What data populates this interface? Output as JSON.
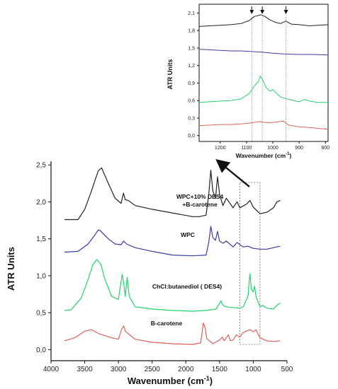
{
  "chart_data": [
    {
      "type": "line",
      "xlabel": "Wavenumber (cm",
      "xlabel_sup": "-1",
      "xlabel_tail": ")",
      "ylabel": "ATR Units",
      "xlim": [
        4000,
        500
      ],
      "ylim": [
        -0.15,
        2.55
      ],
      "x_ticks": [
        4000,
        3500,
        3000,
        2500,
        2000,
        1500,
        1000,
        500
      ],
      "x_tick_labels": [
        "4000",
        "3500",
        "3000",
        "2500",
        "2000",
        "1500",
        "1000",
        "500"
      ],
      "y_ticks": [
        0.0,
        0.5,
        1.0,
        1.5,
        2.0,
        2.5
      ],
      "y_tick_labels": [
        "0,0",
        "0,5",
        "1,0",
        "1,5",
        "2,0",
        "2,5"
      ],
      "grid": false,
      "annotation_box_x": [
        1200,
        900
      ],
      "series": [
        {
          "name": "WPC+10% DES4 +B-carotene",
          "label_lines": [
            "WPC+10% DES4",
            "+B-carotene"
          ],
          "color": "#222222",
          "points": [
            [
              3800,
              1.76
            ],
            [
              3600,
              1.76
            ],
            [
              3500,
              1.9
            ],
            [
              3400,
              2.15
            ],
            [
              3300,
              2.42
            ],
            [
              3250,
              2.46
            ],
            [
              3150,
              2.25
            ],
            [
              3050,
              2.05
            ],
            [
              2960,
              1.98
            ],
            [
              2925,
              2.12
            ],
            [
              2900,
              2.03
            ],
            [
              2855,
              2.02
            ],
            [
              2750,
              1.95
            ],
            [
              2500,
              1.9
            ],
            [
              2200,
              1.85
            ],
            [
              1900,
              1.8
            ],
            [
              1800,
              1.8
            ],
            [
              1700,
              1.82
            ],
            [
              1660,
              2.1
            ],
            [
              1630,
              2.43
            ],
            [
              1600,
              2.15
            ],
            [
              1560,
              2.05
            ],
            [
              1530,
              2.34
            ],
            [
              1500,
              2.1
            ],
            [
              1450,
              1.95
            ],
            [
              1400,
              2.05
            ],
            [
              1300,
              1.92
            ],
            [
              1240,
              2.0
            ],
            [
              1200,
              1.92
            ],
            [
              1100,
              1.97
            ],
            [
              1050,
              2.02
            ],
            [
              1000,
              1.93
            ],
            [
              900,
              1.84
            ],
            [
              800,
              1.86
            ],
            [
              700,
              1.92
            ],
            [
              650,
              2.0
            ],
            [
              600,
              2.02
            ]
          ]
        },
        {
          "name": "WPC",
          "label_lines": [
            "WPC"
          ],
          "color": "#3b3ba6",
          "points": [
            [
              3800,
              1.32
            ],
            [
              3600,
              1.33
            ],
            [
              3450,
              1.43
            ],
            [
              3350,
              1.55
            ],
            [
              3300,
              1.62
            ],
            [
              3270,
              1.61
            ],
            [
              3150,
              1.5
            ],
            [
              3050,
              1.43
            ],
            [
              2960,
              1.42
            ],
            [
              2925,
              1.47
            ],
            [
              2880,
              1.43
            ],
            [
              2750,
              1.38
            ],
            [
              2500,
              1.33
            ],
            [
              2200,
              1.28
            ],
            [
              1900,
              1.27
            ],
            [
              1700,
              1.28
            ],
            [
              1660,
              1.45
            ],
            [
              1630,
              1.67
            ],
            [
              1600,
              1.52
            ],
            [
              1560,
              1.48
            ],
            [
              1530,
              1.6
            ],
            [
              1500,
              1.47
            ],
            [
              1450,
              1.44
            ],
            [
              1400,
              1.47
            ],
            [
              1300,
              1.39
            ],
            [
              1240,
              1.45
            ],
            [
              1150,
              1.39
            ],
            [
              1080,
              1.4
            ],
            [
              1000,
              1.37
            ],
            [
              900,
              1.36
            ],
            [
              800,
              1.36
            ],
            [
              700,
              1.38
            ],
            [
              600,
              1.4
            ]
          ]
        },
        {
          "name": "ChCl:butanediol ( DES4)",
          "label_lines": [
            "ChCl:butanediol ( DES4)"
          ],
          "color": "#22d46a",
          "points": [
            [
              3800,
              0.53
            ],
            [
              3700,
              0.54
            ],
            [
              3550,
              0.7
            ],
            [
              3450,
              0.95
            ],
            [
              3380,
              1.15
            ],
            [
              3320,
              1.22
            ],
            [
              3260,
              1.15
            ],
            [
              3200,
              0.95
            ],
            [
              3100,
              0.72
            ],
            [
              3000,
              0.68
            ],
            [
              2945,
              1.02
            ],
            [
              2920,
              0.88
            ],
            [
              2900,
              0.72
            ],
            [
              2870,
              0.98
            ],
            [
              2840,
              0.72
            ],
            [
              2750,
              0.58
            ],
            [
              2500,
              0.55
            ],
            [
              2200,
              0.53
            ],
            [
              1900,
              0.52
            ],
            [
              1700,
              0.53
            ],
            [
              1550,
              0.55
            ],
            [
              1480,
              0.66
            ],
            [
              1450,
              0.6
            ],
            [
              1400,
              0.58
            ],
            [
              1300,
              0.57
            ],
            [
              1200,
              0.56
            ],
            [
              1150,
              0.58
            ],
            [
              1080,
              0.72
            ],
            [
              1050,
              1.03
            ],
            [
              1030,
              0.82
            ],
            [
              1000,
              0.78
            ],
            [
              980,
              0.86
            ],
            [
              960,
              0.72
            ],
            [
              900,
              0.58
            ],
            [
              860,
              0.6
            ],
            [
              800,
              0.56
            ],
            [
              700,
              0.55
            ],
            [
              650,
              0.6
            ],
            [
              600,
              0.63
            ]
          ]
        },
        {
          "name": "B-carotene",
          "label_lines": [
            "B-carotene"
          ],
          "color": "#e0605a",
          "points": [
            [
              3800,
              0.12
            ],
            [
              3650,
              0.16
            ],
            [
              3500,
              0.25
            ],
            [
              3400,
              0.27
            ],
            [
              3300,
              0.22
            ],
            [
              3100,
              0.16
            ],
            [
              3000,
              0.14
            ],
            [
              2950,
              0.28
            ],
            [
              2920,
              0.32
            ],
            [
              2900,
              0.25
            ],
            [
              2860,
              0.22
            ],
            [
              2750,
              0.14
            ],
            [
              2500,
              0.1
            ],
            [
              2200,
              0.08
            ],
            [
              1900,
              0.07
            ],
            [
              1780,
              0.09
            ],
            [
              1740,
              0.36
            ],
            [
              1715,
              0.3
            ],
            [
              1690,
              0.15
            ],
            [
              1600,
              0.08
            ],
            [
              1560,
              0.1
            ],
            [
              1500,
              0.13
            ],
            [
              1460,
              0.17
            ],
            [
              1430,
              0.12
            ],
            [
              1370,
              0.2
            ],
            [
              1340,
              0.12
            ],
            [
              1300,
              0.13
            ],
            [
              1250,
              0.2
            ],
            [
              1200,
              0.17
            ],
            [
              1150,
              0.23
            ],
            [
              1100,
              0.25
            ],
            [
              1050,
              0.27
            ],
            [
              1000,
              0.24
            ],
            [
              960,
              0.27
            ],
            [
              900,
              0.16
            ],
            [
              800,
              0.12
            ],
            [
              700,
              0.11
            ],
            [
              600,
              0.12
            ]
          ]
        }
      ]
    },
    {
      "type": "line",
      "xlabel": "Wavenumber (cm",
      "xlabel_sup": "-1",
      "xlabel_tail": ")",
      "ylabel": "ATR Units",
      "xlim": [
        1280,
        790
      ],
      "ylim": [
        -0.1,
        2.25
      ],
      "x_ticks": [
        1200,
        1100,
        1000,
        900,
        800
      ],
      "x_tick_labels": [
        "1200",
        "1100",
        "1000",
        "900",
        "800"
      ],
      "y_ticks": [
        0.0,
        0.3,
        0.6,
        0.9,
        1.2,
        1.5,
        1.8,
        2.1
      ],
      "y_tick_labels": [
        "0,0",
        "0,3",
        "0,6",
        "0,9",
        "1,2",
        "1,5",
        "1,8",
        "2,1"
      ],
      "grid": false,
      "markers_x": [
        1080,
        1040,
        950
      ],
      "series": [
        {
          "color": "#222222",
          "points": [
            [
              1280,
              1.87
            ],
            [
              1240,
              1.88
            ],
            [
              1200,
              1.89
            ],
            [
              1160,
              1.9
            ],
            [
              1120,
              1.92
            ],
            [
              1090,
              1.97
            ],
            [
              1070,
              2.04
            ],
            [
              1045,
              2.07
            ],
            [
              1030,
              2.04
            ],
            [
              1010,
              1.98
            ],
            [
              990,
              1.94
            ],
            [
              970,
              1.92
            ],
            [
              950,
              1.96
            ],
            [
              930,
              1.91
            ],
            [
              900,
              1.9
            ],
            [
              860,
              1.88
            ],
            [
              830,
              1.89
            ],
            [
              790,
              1.9
            ]
          ]
        },
        {
          "color": "#3b3ba6",
          "points": [
            [
              1280,
              1.48
            ],
            [
              1240,
              1.47
            ],
            [
              1200,
              1.46
            ],
            [
              1160,
              1.45
            ],
            [
              1120,
              1.45
            ],
            [
              1080,
              1.44
            ],
            [
              1040,
              1.43
            ],
            [
              1000,
              1.41
            ],
            [
              960,
              1.4
            ],
            [
              900,
              1.39
            ],
            [
              850,
              1.39
            ],
            [
              790,
              1.38
            ]
          ]
        },
        {
          "color": "#22d46a",
          "points": [
            [
              1280,
              0.57
            ],
            [
              1240,
              0.58
            ],
            [
              1200,
              0.59
            ],
            [
              1160,
              0.6
            ],
            [
              1120,
              0.63
            ],
            [
              1090,
              0.72
            ],
            [
              1070,
              0.85
            ],
            [
              1055,
              0.93
            ],
            [
              1048,
              1.02
            ],
            [
              1038,
              0.95
            ],
            [
              1025,
              0.82
            ],
            [
              1010,
              0.76
            ],
            [
              1000,
              0.79
            ],
            [
              985,
              0.72
            ],
            [
              970,
              0.66
            ],
            [
              950,
              0.63
            ],
            [
              930,
              0.61
            ],
            [
              900,
              0.58
            ],
            [
              880,
              0.62
            ],
            [
              860,
              0.59
            ],
            [
              830,
              0.57
            ],
            [
              790,
              0.57
            ]
          ]
        },
        {
          "color": "#e0605a",
          "points": [
            [
              1280,
              0.17
            ],
            [
              1240,
              0.18
            ],
            [
              1200,
              0.19
            ],
            [
              1160,
              0.19
            ],
            [
              1120,
              0.2
            ],
            [
              1080,
              0.22
            ],
            [
              1050,
              0.24
            ],
            [
              1020,
              0.22
            ],
            [
              990,
              0.23
            ],
            [
              960,
              0.25
            ],
            [
              940,
              0.18
            ],
            [
              900,
              0.15
            ],
            [
              860,
              0.14
            ],
            [
              820,
              0.12
            ],
            [
              790,
              0.11
            ]
          ]
        }
      ]
    }
  ]
}
